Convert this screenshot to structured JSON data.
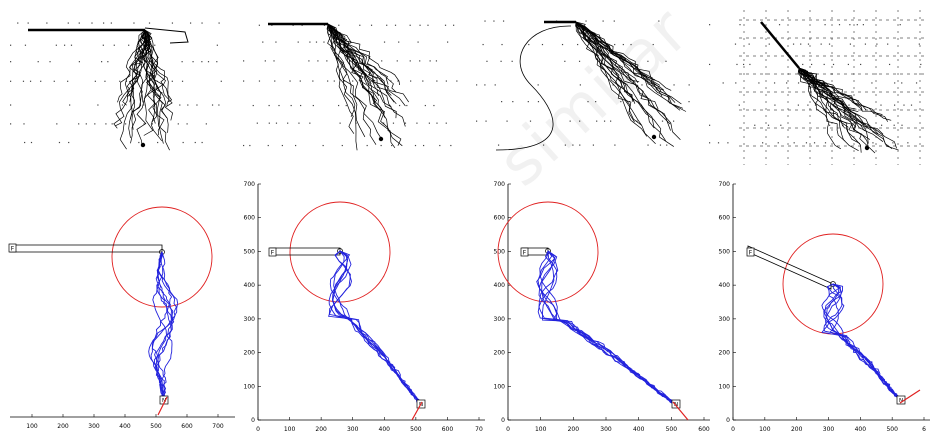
{
  "watermark_text": "similar",
  "colors": {
    "trajectory": "#2222dd",
    "circle": "#e02020",
    "pointer": "#e02020",
    "bar": "#000000",
    "sketch": "#000000",
    "axis": "#000000"
  },
  "top_panels": [
    {
      "id": "A",
      "bar_length": 110,
      "angle": 0
    },
    {
      "id": "B",
      "bar_length": 60,
      "angle": 0
    },
    {
      "id": "C",
      "bar_length": 30,
      "angle": 0
    },
    {
      "id": "D",
      "bar_length": 60,
      "angle": 40
    }
  ],
  "plots": [
    {
      "id": "plot-1",
      "x_ticks": [
        "100",
        "200",
        "300",
        "400",
        "500",
        "600",
        "700"
      ],
      "y_ticks": [],
      "start_label": "F",
      "end_label": "N",
      "circle_radius": 150,
      "trajectory_count": 8
    },
    {
      "id": "plot-2",
      "x_ticks": [
        "0",
        "100",
        "200",
        "300",
        "400",
        "500",
        "600",
        "70"
      ],
      "y_ticks": [
        "0",
        "100",
        "200",
        "300",
        "400",
        "500",
        "600",
        "700"
      ],
      "start_label": "F",
      "end_label": "N",
      "circle_radius": 150,
      "trajectory_count": 8
    },
    {
      "id": "plot-3",
      "x_ticks": [
        "0",
        "100",
        "200",
        "300",
        "400",
        "500",
        "600"
      ],
      "y_ticks": [
        "0",
        "100",
        "200",
        "300",
        "400",
        "500",
        "600",
        "700"
      ],
      "start_label": "F",
      "end_label": "N",
      "circle_radius": 150,
      "trajectory_count": 8
    },
    {
      "id": "plot-4",
      "x_ticks": [
        "0",
        "100",
        "200",
        "300",
        "400",
        "500",
        "6"
      ],
      "y_ticks": [
        "0",
        "100",
        "200",
        "300",
        "400",
        "500",
        "600",
        "700"
      ],
      "start_label": "F",
      "end_label": "N",
      "circle_radius": 150,
      "trajectory_count": 8
    }
  ]
}
